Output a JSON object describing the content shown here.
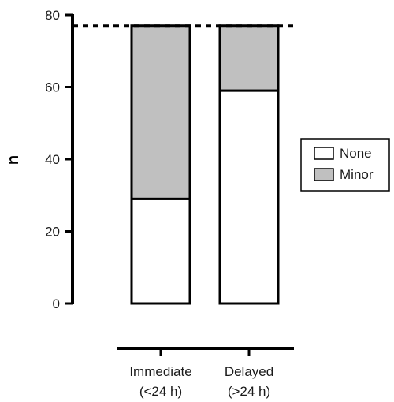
{
  "chart_data": {
    "type": "bar",
    "stacked": true,
    "ylabel": "n",
    "xlabel": "",
    "ylim": [
      0,
      80
    ],
    "yticks": [
      0,
      20,
      40,
      60,
      80
    ],
    "categories": [
      {
        "line1": "Immediate",
        "line2": "(<24 h)"
      },
      {
        "line1": "Delayed",
        "line2": "(>24 h)"
      }
    ],
    "series": [
      {
        "name": "None",
        "values": [
          29,
          59
        ],
        "color": "#ffffff"
      },
      {
        "name": "Minor",
        "values": [
          48,
          18
        ],
        "color": "#c0c0c0"
      }
    ],
    "reference_line": {
      "y": 77,
      "style": "dashed"
    },
    "legend": {
      "placement": "right",
      "items": [
        "None",
        "Minor"
      ]
    },
    "grid": false
  }
}
